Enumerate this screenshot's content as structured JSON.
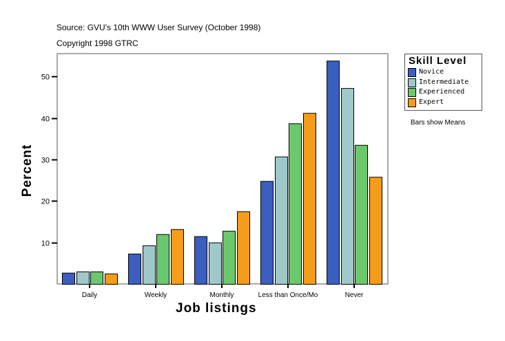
{
  "chart_data": {
    "type": "bar",
    "source": "Source: GVU's 10th WWW User Survey (October 1998)",
    "copyright": "Copyright 1998 GTRC",
    "xlabel": "Job listings",
    "ylabel": "Percent",
    "note": "Bars show Means",
    "legend_title": "Skill Level",
    "legend_position": "right",
    "ylim": [
      0,
      55.5
    ],
    "yticks": [
      10,
      20,
      30,
      40,
      50
    ],
    "categories": [
      "Daily",
      "Weekly",
      "Monthly",
      "Less than Once/Mo",
      "Never"
    ],
    "series": [
      {
        "name": "Novice",
        "color": "#3a5fc0",
        "values": [
          2.7,
          7.3,
          11.5,
          24.8,
          53.8
        ]
      },
      {
        "name": "Intermediate",
        "color": "#9fc8c8",
        "values": [
          3.0,
          9.3,
          10.0,
          30.7,
          47.2
        ]
      },
      {
        "name": "Experienced",
        "color": "#6cc86c",
        "values": [
          3.0,
          12.0,
          12.8,
          38.7,
          33.5
        ]
      },
      {
        "name": "Expert",
        "color": "#f59c1a",
        "values": [
          2.5,
          13.2,
          17.5,
          41.2,
          25.8
        ]
      }
    ]
  }
}
